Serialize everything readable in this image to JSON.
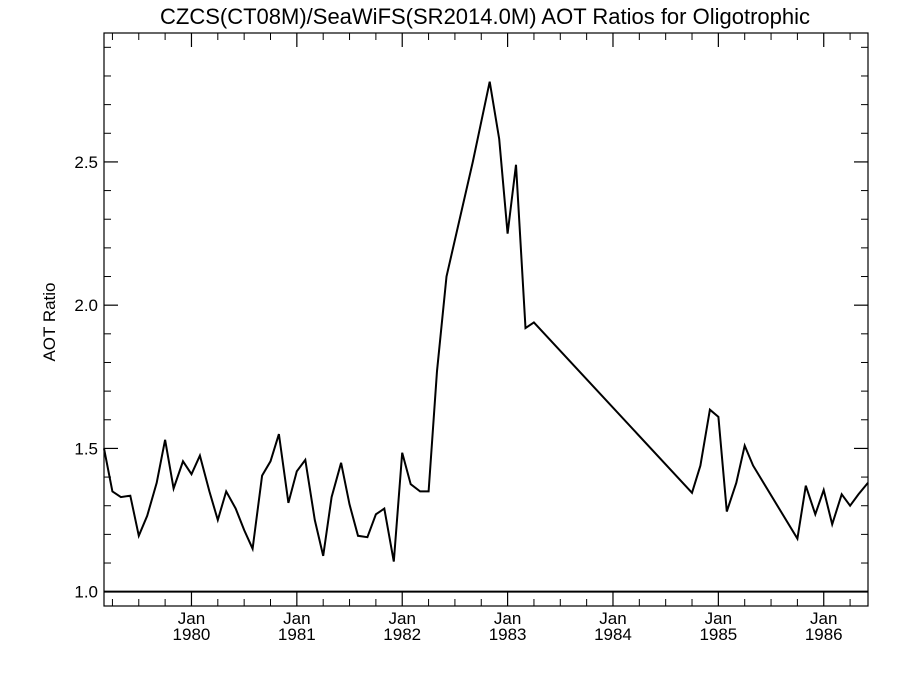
{
  "chart_data": {
    "type": "line",
    "title": "CZCS(CT08M)/SeaWiFS(SR2014.0M)  AOT Ratios for Oligotrophic",
    "xlabel": "",
    "ylabel": "AOT Ratio",
    "xlim": [
      1979.17,
      1986.42
    ],
    "ylim": [
      0.95,
      2.95
    ],
    "grid": false,
    "y_ticks": [
      {
        "value": 1.0,
        "label": "1.0"
      },
      {
        "value": 1.5,
        "label": "1.5"
      },
      {
        "value": 2.0,
        "label": "2.0"
      },
      {
        "value": 2.5,
        "label": "2.5"
      }
    ],
    "x_ticks": [
      {
        "value": 1980.0,
        "month": "Jan",
        "year": "1980"
      },
      {
        "value": 1981.0,
        "month": "Jan",
        "year": "1981"
      },
      {
        "value": 1982.0,
        "month": "Jan",
        "year": "1982"
      },
      {
        "value": 1983.0,
        "month": "Jan",
        "year": "1983"
      },
      {
        "value": 1984.0,
        "month": "Jan",
        "year": "1984"
      },
      {
        "value": 1985.0,
        "month": "Jan",
        "year": "1985"
      },
      {
        "value": 1986.0,
        "month": "Jan",
        "year": "1986"
      }
    ],
    "reference_line": {
      "y": 1.0
    },
    "series": [
      {
        "x": [
          1979.17,
          1979.25,
          1979.33,
          1979.42,
          1979.5,
          1979.58,
          1979.67,
          1979.75,
          1979.83,
          1979.92,
          1980.0,
          1980.08,
          1980.17,
          1980.25,
          1980.33,
          1980.42,
          1980.5,
          1980.58,
          1980.67,
          1980.75,
          1980.83,
          1980.92,
          1981.0,
          1981.08,
          1981.17,
          1981.25,
          1981.33,
          1981.42,
          1981.5,
          1981.58,
          1981.67,
          1981.75,
          1981.83,
          1981.92,
          1982.0,
          1982.08,
          1982.17,
          1982.25,
          1982.33,
          1982.42,
          1982.67,
          1982.83,
          1982.92,
          1983.0,
          1983.08,
          1983.17,
          1983.25,
          1984.75,
          1984.83,
          1984.92,
          1985.0,
          1985.08,
          1985.17,
          1985.25,
          1985.33,
          1985.75,
          1985.83,
          1985.92,
          1986.0,
          1986.08,
          1986.17,
          1986.25,
          1986.33,
          1986.42
        ],
        "values": [
          1.5,
          1.35,
          1.33,
          1.335,
          1.195,
          1.265,
          1.38,
          1.53,
          1.36,
          1.455,
          1.41,
          1.475,
          1.35,
          1.25,
          1.35,
          1.29,
          1.215,
          1.15,
          1.405,
          1.455,
          1.55,
          1.31,
          1.42,
          1.46,
          1.25,
          1.125,
          1.33,
          1.45,
          1.305,
          1.195,
          1.19,
          1.27,
          1.29,
          1.105,
          1.485,
          1.375,
          1.35,
          1.35,
          1.77,
          2.1,
          2.5,
          2.78,
          2.58,
          2.25,
          2.49,
          1.92,
          1.94,
          1.345,
          1.44,
          1.635,
          1.61,
          1.28,
          1.38,
          1.51,
          1.44,
          1.185,
          1.37,
          1.27,
          1.355,
          1.235,
          1.34,
          1.3,
          1.34,
          1.38
        ]
      }
    ]
  }
}
